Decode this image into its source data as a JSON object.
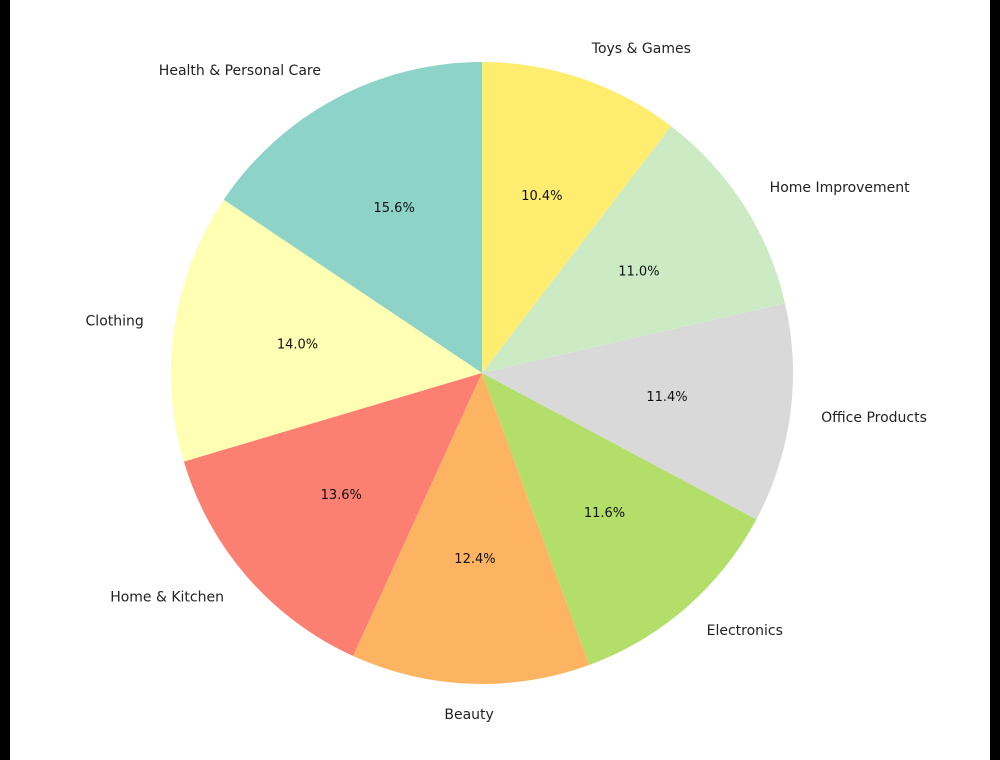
{
  "chart_data": {
    "type": "pie",
    "title": "",
    "start_angle_deg": 90,
    "direction": "counterclockwise",
    "slices": [
      {
        "label": "Health & Personal Care",
        "value": 15.6,
        "pct_text": "15.6%",
        "color": "#8dd3c7"
      },
      {
        "label": "Clothing",
        "value": 14.0,
        "pct_text": "14.0%",
        "color": "#ffffb3"
      },
      {
        "label": "Home & Kitchen",
        "value": 13.6,
        "pct_text": "13.6%",
        "color": "#fb8072"
      },
      {
        "label": "Beauty",
        "value": 12.4,
        "pct_text": "12.4%",
        "color": "#fdb462"
      },
      {
        "label": "Electronics",
        "value": 11.6,
        "pct_text": "11.6%",
        "color": "#b3de69"
      },
      {
        "label": "Office Products",
        "value": 11.4,
        "pct_text": "11.4%",
        "color": "#d9d9d9"
      },
      {
        "label": "Home Improvement",
        "value": 11.0,
        "pct_text": "11.0%",
        "color": "#ccebc5"
      },
      {
        "label": "Toys & Games",
        "value": 10.4,
        "pct_text": "10.4%",
        "color": "#ffed6f"
      }
    ]
  }
}
